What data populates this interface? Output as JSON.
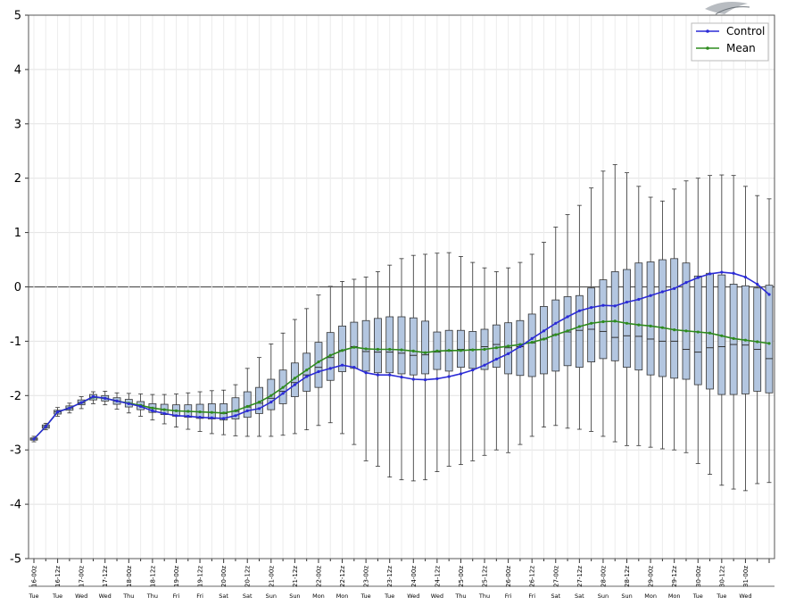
{
  "chart_data": {
    "type": "box",
    "title": "",
    "xlabel": "",
    "ylabel": "",
    "ylim": [
      -5,
      5
    ],
    "yticks": [
      5,
      4,
      3,
      2,
      1,
      0,
      -1,
      -2,
      -3,
      -4,
      -5
    ],
    "grid": true,
    "legend_position": "top-right",
    "x_tick_labels": [
      "16-00z",
      "16-12z",
      "17-00z",
      "17-12z",
      "18-00z",
      "18-12z",
      "19-00z",
      "19-12z",
      "20-00z",
      "20-12z",
      "21-00z",
      "21-12z",
      "22-00z",
      "22-12z",
      "23-00z",
      "23-12z",
      "24-00z",
      "24-12z",
      "25-00z",
      "25-12z",
      "26-00z",
      "26-12z",
      "27-00z",
      "27-12z",
      "28-00z",
      "28-12z",
      "29-00z",
      "29-12z",
      "30-00z",
      "30-12z",
      "31-00z"
    ],
    "day_labels": [
      "Tue",
      "Tue",
      "Wed",
      "Wed",
      "Thu",
      "Thu",
      "Fri",
      "Fri",
      "Sat",
      "Sat",
      "Sun",
      "Sun",
      "Mon",
      "Mon",
      "Tue",
      "Tue",
      "Wed",
      "Wed",
      "Thu",
      "Thu",
      "Fri",
      "Fri",
      "Sat",
      "Sat",
      "Sun",
      "Sun",
      "Mon",
      "Mon",
      "Tue",
      "Tue",
      "Wed"
    ],
    "series": [
      {
        "name": "Control",
        "color": "#2b2bd6",
        "values": [
          -2.8,
          -2.57,
          -2.3,
          -2.23,
          -2.13,
          -2.02,
          -2.05,
          -2.1,
          -2.15,
          -2.2,
          -2.28,
          -2.33,
          -2.37,
          -2.38,
          -2.4,
          -2.41,
          -2.42,
          -2.37,
          -2.28,
          -2.24,
          -2.12,
          -1.96,
          -1.8,
          -1.65,
          -1.56,
          -1.5,
          -1.44,
          -1.48,
          -1.58,
          -1.62,
          -1.62,
          -1.66,
          -1.7,
          -1.71,
          -1.69,
          -1.65,
          -1.6,
          -1.53,
          -1.44,
          -1.33,
          -1.23,
          -1.1,
          -0.95,
          -0.81,
          -0.67,
          -0.55,
          -0.44,
          -0.38,
          -0.34,
          -0.35,
          -0.28,
          -0.23,
          -0.16,
          -0.09,
          -0.03,
          0.08,
          0.17,
          0.24,
          0.27,
          0.25,
          0.18,
          0.05,
          -0.14
        ]
      },
      {
        "name": "Mean",
        "color": "#2e8b1e",
        "values": [
          -2.8,
          -2.57,
          -2.3,
          -2.23,
          -2.13,
          -2.03,
          -2.05,
          -2.1,
          -2.14,
          -2.18,
          -2.23,
          -2.26,
          -2.28,
          -2.29,
          -2.3,
          -2.31,
          -2.32,
          -2.28,
          -2.2,
          -2.12,
          -2.0,
          -1.85,
          -1.68,
          -1.53,
          -1.38,
          -1.26,
          -1.17,
          -1.11,
          -1.14,
          -1.15,
          -1.15,
          -1.16,
          -1.18,
          -1.21,
          -1.18,
          -1.17,
          -1.17,
          -1.16,
          -1.15,
          -1.12,
          -1.09,
          -1.06,
          -1.02,
          -0.96,
          -0.88,
          -0.81,
          -0.73,
          -0.67,
          -0.64,
          -0.63,
          -0.67,
          -0.7,
          -0.72,
          -0.75,
          -0.79,
          -0.81,
          -0.83,
          -0.85,
          -0.9,
          -0.95,
          -0.98,
          -1.01,
          -1.04
        ]
      }
    ],
    "boxes": [
      {
        "x": 0,
        "min": -2.85,
        "q1": -2.82,
        "median": -2.8,
        "q3": -2.78,
        "max": -2.75
      },
      {
        "x": 1,
        "min": -2.63,
        "q1": -2.6,
        "median": -2.57,
        "q3": -2.54,
        "max": -2.51
      },
      {
        "x": 2,
        "min": -2.38,
        "q1": -2.34,
        "median": -2.3,
        "q3": -2.27,
        "max": -2.22
      },
      {
        "x": 3,
        "min": -2.32,
        "q1": -2.27,
        "median": -2.23,
        "q3": -2.19,
        "max": -2.14
      },
      {
        "x": 4,
        "min": -2.24,
        "q1": -2.17,
        "median": -2.13,
        "q3": -2.08,
        "max": -2.02
      },
      {
        "x": 5,
        "min": -2.15,
        "q1": -2.08,
        "median": -2.03,
        "q3": -1.98,
        "max": -1.93
      },
      {
        "x": 6,
        "min": -2.17,
        "q1": -2.1,
        "median": -2.05,
        "q3": -2.0,
        "max": -1.92
      },
      {
        "x": 7,
        "min": -2.25,
        "q1": -2.16,
        "median": -2.1,
        "q3": -2.04,
        "max": -1.95
      },
      {
        "x": 8,
        "min": -2.32,
        "q1": -2.21,
        "median": -2.14,
        "q3": -2.07,
        "max": -1.96
      },
      {
        "x": 9,
        "min": -2.38,
        "q1": -2.26,
        "median": -2.18,
        "q3": -2.11,
        "max": -1.97
      },
      {
        "x": 10,
        "min": -2.45,
        "q1": -2.31,
        "median": -2.23,
        "q3": -2.15,
        "max": -1.98
      },
      {
        "x": 11,
        "min": -2.52,
        "q1": -2.35,
        "median": -2.26,
        "q3": -2.16,
        "max": -1.98
      },
      {
        "x": 12,
        "min": -2.58,
        "q1": -2.38,
        "median": -2.28,
        "q3": -2.17,
        "max": -1.97
      },
      {
        "x": 13,
        "min": -2.62,
        "q1": -2.4,
        "median": -2.29,
        "q3": -2.17,
        "max": -1.95
      },
      {
        "x": 14,
        "min": -2.66,
        "q1": -2.42,
        "median": -2.3,
        "q3": -2.16,
        "max": -1.93
      },
      {
        "x": 15,
        "min": -2.7,
        "q1": -2.43,
        "median": -2.31,
        "q3": -2.15,
        "max": -1.91
      },
      {
        "x": 16,
        "min": -2.72,
        "q1": -2.45,
        "median": -2.33,
        "q3": -2.15,
        "max": -1.9
      },
      {
        "x": 17,
        "min": -2.74,
        "q1": -2.43,
        "median": -2.29,
        "q3": -2.04,
        "max": -1.8
      },
      {
        "x": 18,
        "min": -2.75,
        "q1": -2.4,
        "median": -2.21,
        "q3": -1.93,
        "max": -1.5
      },
      {
        "x": 19,
        "min": -2.75,
        "q1": -2.33,
        "median": -2.14,
        "q3": -1.85,
        "max": -1.3
      },
      {
        "x": 20,
        "min": -2.75,
        "q1": -2.26,
        "median": -2.05,
        "q3": -1.7,
        "max": -1.05
      },
      {
        "x": 21,
        "min": -2.73,
        "q1": -2.15,
        "median": -1.92,
        "q3": -1.53,
        "max": -0.85
      },
      {
        "x": 22,
        "min": -2.7,
        "q1": -2.02,
        "median": -1.76,
        "q3": -1.4,
        "max": -0.6
      },
      {
        "x": 23,
        "min": -2.63,
        "q1": -1.92,
        "median": -1.62,
        "q3": -1.22,
        "max": -0.4
      },
      {
        "x": 24,
        "min": -2.55,
        "q1": -1.85,
        "median": -1.48,
        "q3": -1.02,
        "max": -0.15
      },
      {
        "x": 25,
        "min": -2.5,
        "q1": -1.72,
        "median": -1.3,
        "q3": -0.84,
        "max": 0.01
      },
      {
        "x": 26,
        "min": -2.7,
        "q1": -1.56,
        "median": -1.17,
        "q3": -0.72,
        "max": 0.1
      },
      {
        "x": 27,
        "min": -2.9,
        "q1": -1.5,
        "median": -1.1,
        "q3": -0.65,
        "max": 0.14
      },
      {
        "x": 28,
        "min": -3.2,
        "q1": -1.55,
        "median": -1.19,
        "q3": -0.62,
        "max": 0.18
      },
      {
        "x": 29,
        "min": -3.3,
        "q1": -1.58,
        "median": -1.2,
        "q3": -0.58,
        "max": 0.28
      },
      {
        "x": 30,
        "min": -3.5,
        "q1": -1.58,
        "median": -1.2,
        "q3": -0.55,
        "max": 0.4
      },
      {
        "x": 31,
        "min": -3.55,
        "q1": -1.6,
        "median": -1.22,
        "q3": -0.55,
        "max": 0.52
      },
      {
        "x": 32,
        "min": -3.57,
        "q1": -1.62,
        "median": -1.26,
        "q3": -0.57,
        "max": 0.58
      },
      {
        "x": 33,
        "min": -3.55,
        "q1": -1.6,
        "median": -1.25,
        "q3": -0.63,
        "max": 0.6
      },
      {
        "x": 34,
        "min": -3.4,
        "q1": -1.52,
        "median": -1.2,
        "q3": -0.83,
        "max": 0.62
      },
      {
        "x": 35,
        "min": -3.3,
        "q1": -1.55,
        "median": -1.18,
        "q3": -0.8,
        "max": 0.63
      },
      {
        "x": 36,
        "min": -3.27,
        "q1": -1.48,
        "median": -1.15,
        "q3": -0.8,
        "max": 0.56
      },
      {
        "x": 37,
        "min": -3.2,
        "q1": -1.5,
        "median": -1.15,
        "q3": -0.82,
        "max": 0.45
      },
      {
        "x": 38,
        "min": -3.1,
        "q1": -1.52,
        "median": -1.1,
        "q3": -0.78,
        "max": 0.35
      },
      {
        "x": 39,
        "min": -3.0,
        "q1": -1.48,
        "median": -1.06,
        "q3": -0.7,
        "max": 0.28
      },
      {
        "x": 40,
        "min": -3.05,
        "q1": -1.6,
        "median": -1.12,
        "q3": -0.66,
        "max": 0.35
      },
      {
        "x": 41,
        "min": -2.9,
        "q1": -1.63,
        "median": -1.1,
        "q3": -0.62,
        "max": 0.45
      },
      {
        "x": 42,
        "min": -2.75,
        "q1": -1.65,
        "median": -1.03,
        "q3": -0.5,
        "max": 0.6
      },
      {
        "x": 43,
        "min": -2.58,
        "q1": -1.6,
        "median": -0.96,
        "q3": -0.36,
        "max": 0.82
      },
      {
        "x": 44,
        "min": -2.55,
        "q1": -1.55,
        "median": -0.88,
        "q3": -0.24,
        "max": 1.1
      },
      {
        "x": 45,
        "min": -2.6,
        "q1": -1.45,
        "median": -0.83,
        "q3": -0.18,
        "max": 1.33
      },
      {
        "x": 46,
        "min": -2.62,
        "q1": -1.48,
        "median": -0.8,
        "q3": -0.16,
        "max": 1.5
      },
      {
        "x": 47,
        "min": -2.66,
        "q1": -1.38,
        "median": -0.78,
        "q3": -0.02,
        "max": 1.82
      },
      {
        "x": 48,
        "min": -2.75,
        "q1": -1.32,
        "median": -0.82,
        "q3": 0.13,
        "max": 2.13
      },
      {
        "x": 49,
        "min": -2.85,
        "q1": -1.36,
        "median": -0.93,
        "q3": 0.28,
        "max": 2.25
      },
      {
        "x": 50,
        "min": -2.92,
        "q1": -1.48,
        "median": -0.9,
        "q3": 0.32,
        "max": 2.1
      },
      {
        "x": 51,
        "min": -2.92,
        "q1": -1.53,
        "median": -0.91,
        "q3": 0.44,
        "max": 1.85
      },
      {
        "x": 52,
        "min": -2.95,
        "q1": -1.62,
        "median": -0.96,
        "q3": 0.46,
        "max": 1.65
      },
      {
        "x": 53,
        "min": -2.98,
        "q1": -1.65,
        "median": -1.0,
        "q3": 0.5,
        "max": 1.58
      },
      {
        "x": 54,
        "min": -3.0,
        "q1": -1.68,
        "median": -1.0,
        "q3": 0.52,
        "max": 1.8
      },
      {
        "x": 55,
        "min": -3.05,
        "q1": -1.7,
        "median": -1.15,
        "q3": 0.44,
        "max": 1.95
      },
      {
        "x": 56,
        "min": -3.25,
        "q1": -1.8,
        "median": -1.2,
        "q3": 0.2,
        "max": 2.0
      },
      {
        "x": 57,
        "min": -3.45,
        "q1": -1.88,
        "median": -1.12,
        "q3": 0.25,
        "max": 2.05
      },
      {
        "x": 58,
        "min": -3.65,
        "q1": -1.98,
        "median": -1.1,
        "q3": 0.22,
        "max": 2.06
      },
      {
        "x": 59,
        "min": -3.72,
        "q1": -1.98,
        "median": -1.06,
        "q3": 0.05,
        "max": 2.05
      },
      {
        "x": 60,
        "min": -3.75,
        "q1": -1.97,
        "median": -1.07,
        "q3": 0.02,
        "max": 1.85
      },
      {
        "x": 61,
        "min": -3.62,
        "q1": -1.92,
        "median": -1.15,
        "q3": -0.02,
        "max": 1.68
      },
      {
        "x": 62,
        "min": -3.6,
        "q1": -1.95,
        "median": -1.32,
        "q3": 0.03,
        "max": 1.62
      }
    ]
  }
}
